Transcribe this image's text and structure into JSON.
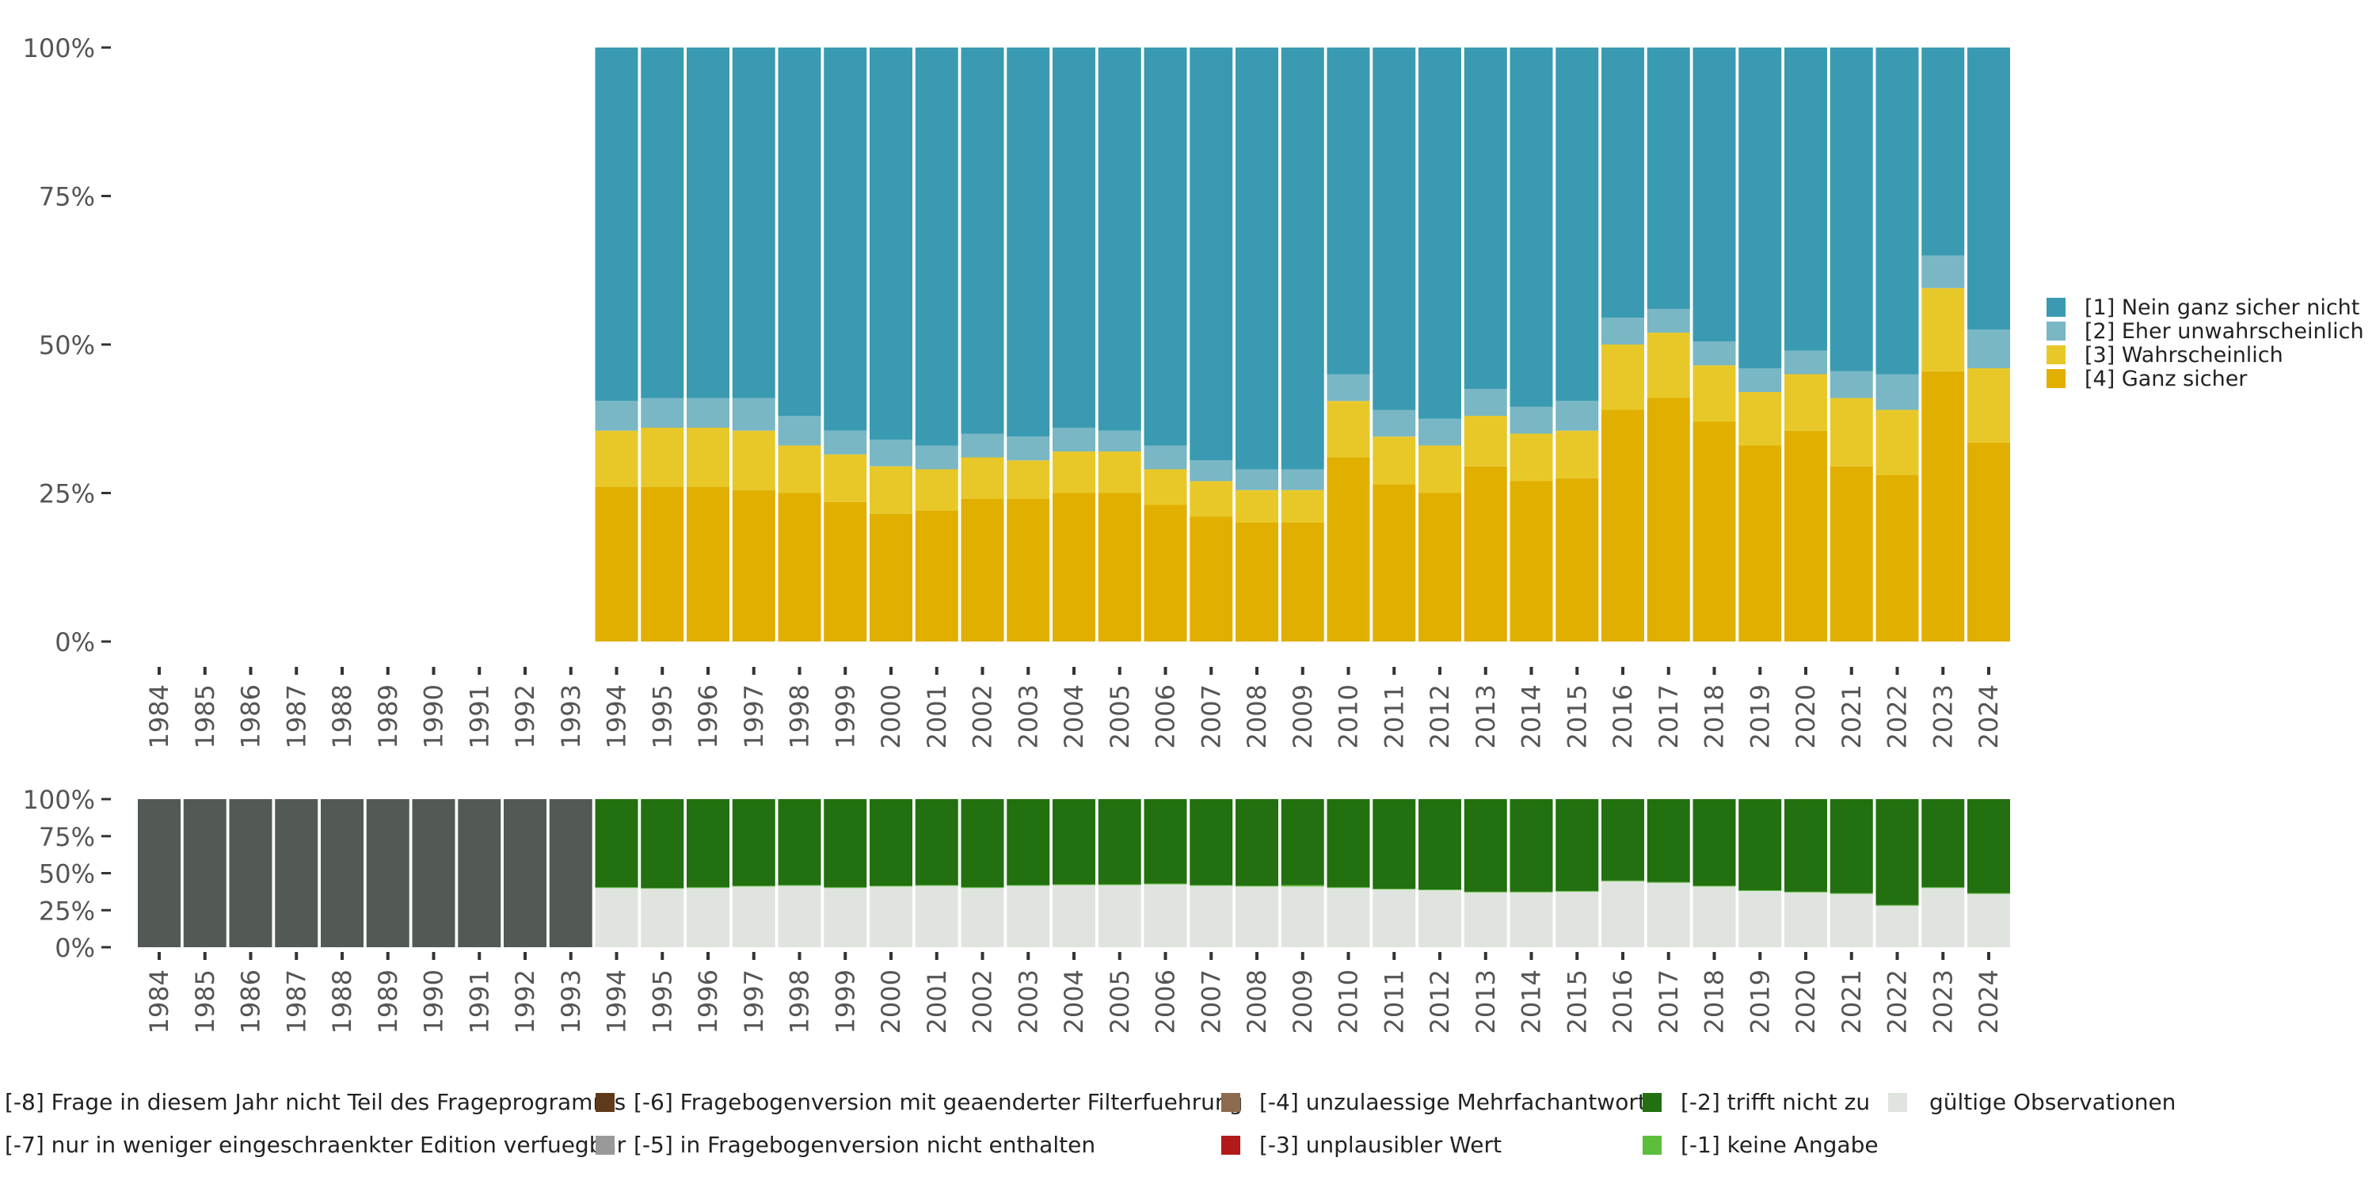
{
  "colors": {
    "c1": "#3A9AB2",
    "c2": "#79B7C5",
    "c3": "#E8C829",
    "c4": "#E1AF00",
    "m8": "#535A55",
    "m7": "#A9A9A9",
    "m6": "#5E3A1A",
    "m5": "#999999",
    "m4": "#8C6B4F",
    "m3": "#B21A1A",
    "m2": "#22700F",
    "m1": "#5DBE3C",
    "valid": "#E0E4DF",
    "axis_text": "#555555",
    "tick": "#333333"
  },
  "chart_data": [
    {
      "type": "bar",
      "stacked": true,
      "title": "",
      "xlabel": "",
      "ylabel": "",
      "ylim": [
        0,
        100
      ],
      "yticks": [
        0,
        25,
        50,
        75,
        100
      ],
      "ytick_labels": [
        "0%",
        "25%",
        "50%",
        "75%",
        "100%"
      ],
      "legend_position": "right",
      "categories": [
        "1984",
        "1985",
        "1986",
        "1987",
        "1988",
        "1989",
        "1990",
        "1991",
        "1992",
        "1993",
        "1994",
        "1995",
        "1996",
        "1997",
        "1998",
        "1999",
        "2000",
        "2001",
        "2002",
        "2003",
        "2004",
        "2005",
        "2006",
        "2007",
        "2008",
        "2009",
        "2010",
        "2011",
        "2012",
        "2013",
        "2014",
        "2015",
        "2016",
        "2017",
        "2018",
        "2019",
        "2020",
        "2021",
        "2022",
        "2023",
        "2024"
      ],
      "series": [
        {
          "name": "[4] Ganz sicher",
          "color_key": "c4",
          "values": [
            null,
            null,
            null,
            null,
            null,
            null,
            null,
            null,
            null,
            null,
            26,
            26,
            26,
            25.5,
            25,
            23.5,
            21.5,
            22,
            24,
            24,
            25,
            25,
            23,
            21,
            20,
            20,
            31,
            26.5,
            25,
            29.5,
            27,
            27.5,
            39,
            41,
            37,
            33,
            35.5,
            29.5,
            28,
            45.5,
            33.5
          ]
        },
        {
          "name": "[3] Wahrscheinlich",
          "color_key": "c3",
          "values": [
            null,
            null,
            null,
            null,
            null,
            null,
            null,
            null,
            null,
            null,
            9.5,
            10,
            10,
            10,
            8,
            8,
            8,
            7,
            7,
            6.5,
            7,
            7,
            6,
            6,
            5.5,
            5.5,
            9.5,
            8,
            8,
            8.5,
            8,
            8,
            11,
            11,
            9.5,
            9,
            9.5,
            11.5,
            11,
            14,
            12.5
          ]
        },
        {
          "name": "[2] Eher unwahrscheinlich",
          "color_key": "c2",
          "values": [
            null,
            null,
            null,
            null,
            null,
            null,
            null,
            null,
            null,
            null,
            5,
            5,
            5,
            5.5,
            5,
            4,
            4.5,
            4,
            4,
            4,
            4,
            3.5,
            4,
            3.5,
            3.5,
            3.5,
            4.5,
            4.5,
            4.5,
            4.5,
            4.5,
            5,
            4.5,
            4,
            4,
            4,
            4,
            4.5,
            6,
            5.5,
            6.5
          ]
        },
        {
          "name": "[1] Nein ganz sicher nicht",
          "color_key": "c1",
          "values": [
            null,
            null,
            null,
            null,
            null,
            null,
            null,
            null,
            null,
            null,
            59.5,
            59,
            59,
            59,
            62,
            64.5,
            66,
            67,
            65,
            65.5,
            64,
            64.5,
            67,
            69.5,
            71,
            71,
            55,
            61,
            62.5,
            57.5,
            60.5,
            59.5,
            45.5,
            44,
            49.5,
            54,
            51,
            54.5,
            55,
            35,
            47.5
          ]
        }
      ],
      "legend": [
        "[1] Nein ganz sicher nicht",
        "[2] Eher unwahrscheinlich",
        "[3] Wahrscheinlich",
        "[4] Ganz sicher"
      ]
    },
    {
      "type": "bar",
      "stacked": true,
      "title": "",
      "xlabel": "",
      "ylabel": "",
      "ylim": [
        0,
        100
      ],
      "yticks": [
        0,
        25,
        50,
        75,
        100
      ],
      "ytick_labels": [
        "0%",
        "25%",
        "50%",
        "75%",
        "100%"
      ],
      "legend_position": "bottom",
      "categories": [
        "1984",
        "1985",
        "1986",
        "1987",
        "1988",
        "1989",
        "1990",
        "1991",
        "1992",
        "1993",
        "1994",
        "1995",
        "1996",
        "1997",
        "1998",
        "1999",
        "2000",
        "2001",
        "2002",
        "2003",
        "2004",
        "2005",
        "2006",
        "2007",
        "2008",
        "2009",
        "2010",
        "2011",
        "2012",
        "2013",
        "2014",
        "2015",
        "2016",
        "2017",
        "2018",
        "2019",
        "2020",
        "2021",
        "2022",
        "2023",
        "2024"
      ],
      "series": [
        {
          "name": "gültige Observationen",
          "color_key": "valid",
          "values": [
            0,
            0,
            0,
            0,
            0,
            0,
            0,
            0,
            0,
            0,
            40,
            39.5,
            40,
            41,
            41.5,
            40,
            41,
            41.5,
            40,
            41.5,
            42,
            42,
            42.5,
            41.5,
            41,
            41,
            40,
            39,
            38.5,
            37,
            37,
            37.5,
            44.5,
            43.5,
            41,
            38,
            37,
            36,
            28,
            40,
            36
          ]
        },
        {
          "name": "[-1] keine Angabe",
          "color_key": "m1",
          "values": [
            0,
            0,
            0,
            0,
            0,
            0,
            0,
            0,
            0,
            0,
            0.5,
            0.5,
            0.5,
            0.5,
            0.5,
            0.5,
            0.5,
            0.5,
            0.5,
            0.5,
            0.5,
            0.5,
            0.5,
            0.5,
            0.5,
            1,
            0.5,
            0.5,
            0.5,
            0.5,
            0.5,
            0.5,
            0.5,
            0.5,
            0.5,
            0.5,
            0.5,
            0.5,
            0.5,
            0.5,
            0.5
          ]
        },
        {
          "name": "[-2] trifft nicht zu",
          "color_key": "m2",
          "values": [
            0,
            0,
            0,
            0,
            0,
            0,
            0,
            0,
            0,
            0,
            59.5,
            60,
            59.5,
            58.5,
            58,
            59.5,
            58.5,
            58,
            59.5,
            58,
            57.5,
            57.5,
            57,
            58,
            58.5,
            58,
            59.5,
            60.5,
            61,
            62.5,
            62.5,
            62,
            55,
            56,
            58.5,
            61.5,
            62.5,
            63.5,
            71.5,
            59.5,
            63.5
          ]
        },
        {
          "name": "[-8] Frage in diesem Jahr nicht Teil des Frageprogramms",
          "color_key": "m8",
          "values": [
            100,
            100,
            100,
            100,
            100,
            100,
            100,
            100,
            100,
            100,
            0,
            0,
            0,
            0,
            0,
            0,
            0,
            0,
            0,
            0,
            0,
            0,
            0,
            0,
            0,
            0,
            0,
            0,
            0,
            0,
            0,
            0,
            0,
            0,
            0,
            0,
            0,
            0,
            0,
            0,
            0
          ]
        }
      ],
      "legend": [
        {
          "label": "[-8] Frage in diesem Jahr nicht Teil des Frageprogramms",
          "color_key": "m8"
        },
        {
          "label": "[-7] nur in weniger eingeschraenkter Edition verfuegbar",
          "color_key": "m7"
        },
        {
          "label": "[-6] Fragebogenversion mit geaenderter Filterfuehrung",
          "color_key": "m6"
        },
        {
          "label": "[-5] in Fragebogenversion nicht enthalten",
          "color_key": "m5"
        },
        {
          "label": "[-4] unzulaessige Mehrfachantwort",
          "color_key": "m4"
        },
        {
          "label": "[-3] unplausibler Wert",
          "color_key": "m3"
        },
        {
          "label": "[-2] trifft nicht zu",
          "color_key": "m2"
        },
        {
          "label": "[-1] keine Angabe",
          "color_key": "m1"
        },
        {
          "label": "gültige Observationen",
          "color_key": "valid"
        }
      ]
    }
  ]
}
